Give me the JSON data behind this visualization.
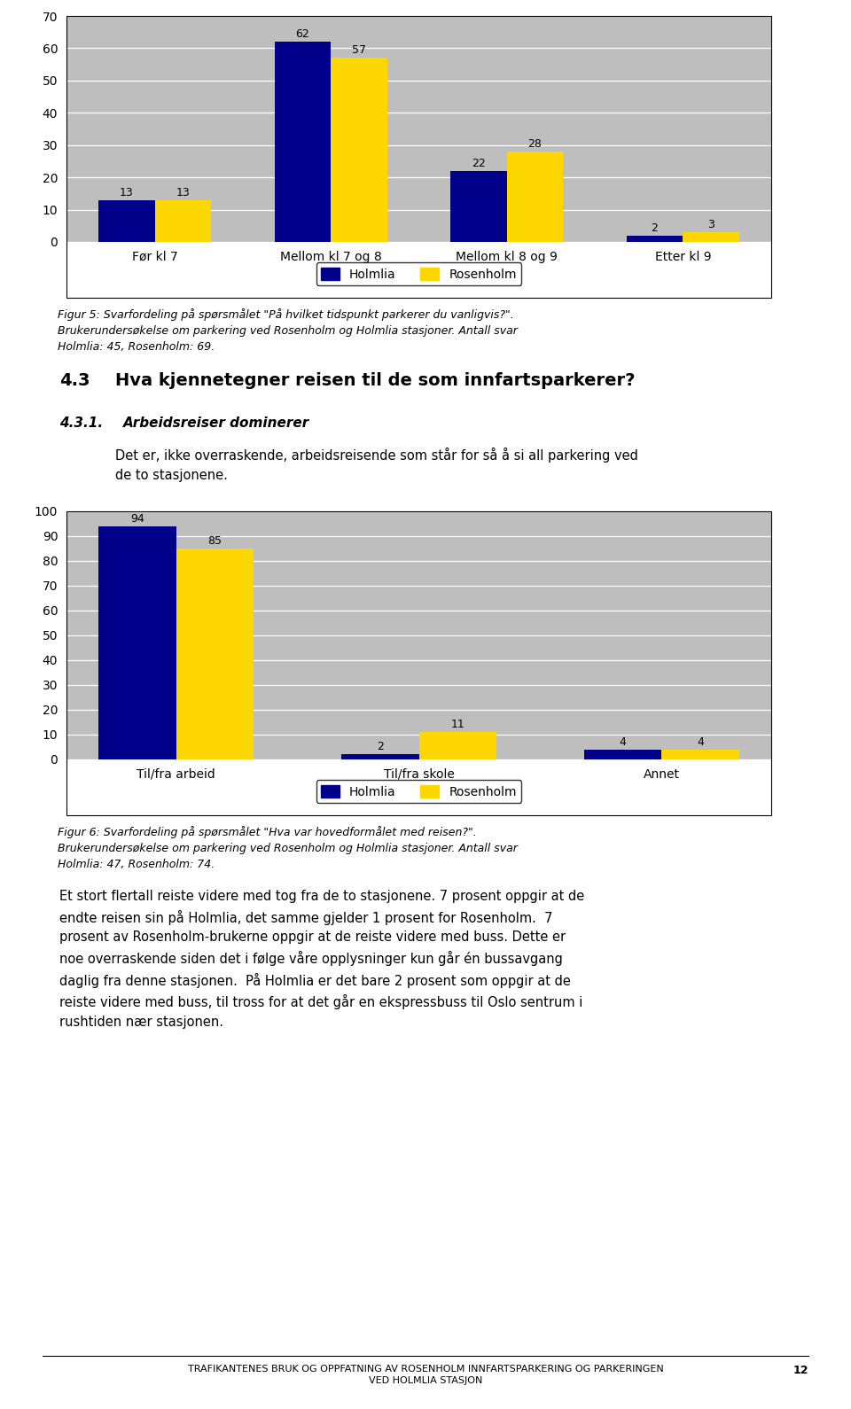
{
  "chart1": {
    "categories": [
      "Før kl 7",
      "Mellom kl 7 og 8",
      "Mellom kl 8 og 9",
      "Etter kl 9"
    ],
    "holmlia": [
      13,
      62,
      22,
      2
    ],
    "rosenholm": [
      13,
      57,
      28,
      3
    ],
    "ylim": [
      0,
      70
    ],
    "yticks": [
      0,
      10,
      20,
      30,
      40,
      50,
      60,
      70
    ],
    "bar_color_holmlia": "#00008B",
    "bar_color_rosenholm": "#FFD700",
    "legend_labels": [
      "Holmlia",
      "Rosenholm"
    ],
    "bg_color": "#BEBEBE"
  },
  "fig5_caption_line1": "Figur 5: Svarfordeling på spørsmålet \"På hvilket tidspunkt parkerer du vanligvis?\".",
  "fig5_caption_line2": "Brukerundersøkelse om parkering ved Rosenholm og Holmlia stasjoner. Antall svar",
  "fig5_caption_line3": "Holmlia: 45, Rosenholm: 69.",
  "section_label": "4.3",
  "section_title": "Hva kjennetegner reisen til de som innfartsparkerer?",
  "subsection_label": "4.3.1.",
  "subsection_title": "Arbeidsreiser dominerer",
  "body_text": "Det er, ikke overraskende, arbeidsreisende som står for så å si all parkering ved\nde to stasjonene.",
  "chart2": {
    "categories": [
      "Til/fra arbeid",
      "Til/fra skole",
      "Annet"
    ],
    "holmlia": [
      94,
      2,
      4
    ],
    "rosenholm": [
      85,
      11,
      4
    ],
    "ylim": [
      0,
      100
    ],
    "yticks": [
      0,
      10,
      20,
      30,
      40,
      50,
      60,
      70,
      80,
      90,
      100
    ],
    "bar_color_holmlia": "#00008B",
    "bar_color_rosenholm": "#FFD700",
    "legend_labels": [
      "Holmlia",
      "Rosenholm"
    ],
    "bg_color": "#BEBEBE"
  },
  "fig6_caption_line1": "Figur 6: Svarfordeling på spørsmålet \"Hva var hovedformålet med reisen?\".",
  "fig6_caption_line2": "Brukerundersøkelse om parkering ved Rosenholm og Holmlia stasjoner. Antall svar",
  "fig6_caption_line3": "Holmlia: 47, Rosenholm: 74.",
  "body_text2_line1": "Et stort flertall reiste videre med tog fra de to stasjonene. 7 prosent oppgir at de",
  "body_text2_line2": "endte reisen sin på Holmlia, det samme gjelder 1 prosent for Rosenholm.  7",
  "body_text2_line3": "prosent av Rosenholm-brukerne oppgir at de reiste videre med buss. Dette er",
  "body_text2_line4": "noe overraskende siden det i følge våre opplysninger kun går én bussavgang",
  "body_text2_line5": "daglig fra denne stasjonen.  På Holmlia er det bare 2 prosent som oppgir at de",
  "body_text2_line6": "reiste videre med buss, til tross for at det går en ekspressbuss til Oslo sentrum i",
  "body_text2_line7": "rushtiden nær stasjonen.",
  "footer_text_line1": "TRAFIKANTENES BRUK OG OPPFATNING AV ROSENHOLM INNFARTSPARKERING OG PARKERINGEN",
  "footer_text_line2": "VED HOLMLIA STASJON",
  "footer_page": "12"
}
